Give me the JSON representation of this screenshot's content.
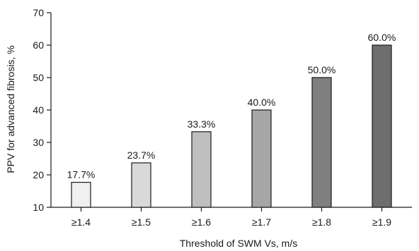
{
  "chart_data": {
    "type": "bar",
    "title": "",
    "xlabel": "Threshold of SWM Vs, m/s",
    "ylabel": "PPV for advanced fibrosis, %",
    "ylim": [
      10,
      70
    ],
    "yticks": [
      10,
      20,
      30,
      40,
      50,
      60,
      70
    ],
    "categories": [
      "≥1.4",
      "≥1.5",
      "≥1.6",
      "≥1.7",
      "≥1.8",
      "≥1.9"
    ],
    "values": [
      17.7,
      23.7,
      33.3,
      40.0,
      50.0,
      60.0
    ],
    "data_labels": [
      "17.7%",
      "23.7%",
      "33.3%",
      "40.0%",
      "50.0%",
      "60.0%"
    ],
    "bar_colors": [
      "#f0f0f0",
      "#d9d9d9",
      "#bfbfbf",
      "#a6a6a6",
      "#7f7f7f",
      "#6e6e6e"
    ],
    "grid": false,
    "legend": "none"
  }
}
